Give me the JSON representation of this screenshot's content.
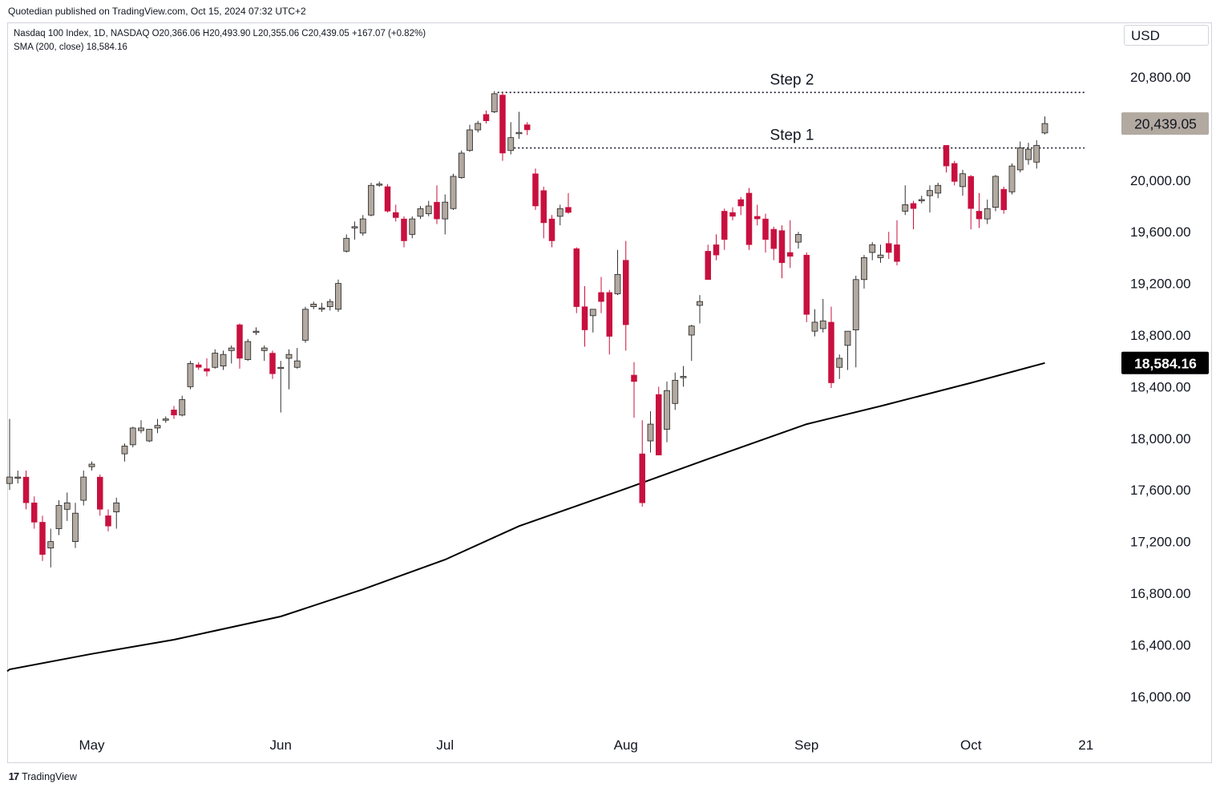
{
  "header": {
    "published": "Quotedian published on TradingView.com, Oct 15, 2024 07:32 UTC+2"
  },
  "legend": {
    "line1": "Nasdaq 100 Index, 1D, NASDAQ  O20,366.06  H20,493.90  L20,355.06  C20,439.05  +167.07 (+0.82%)",
    "line2": "SMA (200, close)  18,584.16"
  },
  "toolbar": {
    "currency": "USD"
  },
  "footer": {
    "brand": "TradingView",
    "logo": "tradingview-logo"
  },
  "colors": {
    "up": "#b2a9a0",
    "down": "#c8103f",
    "sma": "#000000",
    "last_price_badge": "#b2a9a0",
    "sma_badge": "#000000"
  },
  "chart_data": {
    "type": "candlestick",
    "title": "Nasdaq 100 Index, 1D, NASDAQ",
    "ylim": [
      15800,
      21100
    ],
    "y_ticks": [
      16000,
      16400,
      16800,
      17200,
      17600,
      18000,
      18400,
      18800,
      19200,
      19600,
      20000,
      20800
    ],
    "y_tick_labels": [
      "16,000.00",
      "16,400.00",
      "16,800.00",
      "17,200.00",
      "17,600.00",
      "18,000.00",
      "18,400.00",
      "18,800.00",
      "19,200.00",
      "19,600.00",
      "20,000.00",
      "20,800.00"
    ],
    "x_labels": [
      {
        "label": "May",
        "date": "2024-05-01"
      },
      {
        "label": "Jun",
        "date": "2024-06-03"
      },
      {
        "label": "Jul",
        "date": "2024-07-01"
      },
      {
        "label": "Aug",
        "date": "2024-08-01"
      },
      {
        "label": "Sep",
        "date": "2024-09-03"
      },
      {
        "label": "Oct",
        "date": "2024-10-01"
      },
      {
        "label": "21",
        "date": "2024-10-21"
      }
    ],
    "candles": [
      {
        "date": "2024-04-17",
        "o": 17650,
        "h": 18150,
        "l": 17600,
        "c": 17700
      },
      {
        "date": "2024-04-18",
        "o": 17700,
        "h": 17750,
        "l": 17650,
        "c": 17700
      },
      {
        "date": "2024-04-19",
        "o": 17700,
        "h": 17750,
        "l": 17450,
        "c": 17500
      },
      {
        "date": "2024-04-22",
        "o": 17500,
        "h": 17550,
        "l": 17300,
        "c": 17350
      },
      {
        "date": "2024-04-23",
        "o": 17350,
        "h": 17400,
        "l": 17050,
        "c": 17100
      },
      {
        "date": "2024-04-24",
        "o": 17150,
        "h": 17300,
        "l": 17000,
        "c": 17200
      },
      {
        "date": "2024-04-25",
        "o": 17300,
        "h": 17520,
        "l": 17250,
        "c": 17480
      },
      {
        "date": "2024-04-26",
        "o": 17450,
        "h": 17580,
        "l": 17360,
        "c": 17500
      },
      {
        "date": "2024-04-29",
        "o": 17200,
        "h": 17500,
        "l": 17150,
        "c": 17420
      },
      {
        "date": "2024-04-30",
        "o": 17520,
        "h": 17750,
        "l": 17480,
        "c": 17700
      },
      {
        "date": "2024-05-01",
        "o": 17780,
        "h": 17820,
        "l": 17750,
        "c": 17800
      },
      {
        "date": "2024-05-02",
        "o": 17700,
        "h": 17720,
        "l": 17400,
        "c": 17450
      },
      {
        "date": "2024-05-03",
        "o": 17400,
        "h": 17450,
        "l": 17280,
        "c": 17320
      },
      {
        "date": "2024-05-06",
        "o": 17430,
        "h": 17540,
        "l": 17300,
        "c": 17500
      },
      {
        "date": "2024-05-07",
        "o": 17880,
        "h": 17960,
        "l": 17820,
        "c": 17940
      },
      {
        "date": "2024-05-08",
        "o": 17950,
        "h": 18090,
        "l": 17930,
        "c": 18080
      },
      {
        "date": "2024-05-09",
        "o": 18060,
        "h": 18140,
        "l": 18040,
        "c": 18080
      },
      {
        "date": "2024-05-10",
        "o": 17980,
        "h": 18050,
        "l": 17970,
        "c": 18070
      },
      {
        "date": "2024-05-13",
        "o": 18080,
        "h": 18150,
        "l": 18040,
        "c": 18100
      },
      {
        "date": "2024-05-14",
        "o": 18140,
        "h": 18170,
        "l": 18120,
        "c": 18150
      },
      {
        "date": "2024-05-15",
        "o": 18220,
        "h": 18250,
        "l": 18150,
        "c": 18180
      },
      {
        "date": "2024-05-16",
        "o": 18180,
        "h": 18330,
        "l": 18170,
        "c": 18300
      },
      {
        "date": "2024-05-17",
        "o": 18400,
        "h": 18600,
        "l": 18380,
        "c": 18580
      },
      {
        "date": "2024-05-20",
        "o": 18570,
        "h": 18590,
        "l": 18530,
        "c": 18550
      },
      {
        "date": "2024-05-21",
        "o": 18540,
        "h": 18620,
        "l": 18480,
        "c": 18520
      },
      {
        "date": "2024-05-22",
        "o": 18550,
        "h": 18690,
        "l": 18540,
        "c": 18660
      },
      {
        "date": "2024-05-23",
        "o": 18560,
        "h": 18680,
        "l": 18530,
        "c": 18650
      },
      {
        "date": "2024-05-24",
        "o": 18680,
        "h": 18720,
        "l": 18580,
        "c": 18700
      },
      {
        "date": "2024-05-27",
        "o": 18880,
        "h": 18890,
        "l": 18540,
        "c": 18620
      },
      {
        "date": "2024-05-28",
        "o": 18610,
        "h": 18770,
        "l": 18600,
        "c": 18750
      },
      {
        "date": "2024-05-29",
        "o": 18820,
        "h": 18860,
        "l": 18800,
        "c": 18830
      },
      {
        "date": "2024-05-30",
        "o": 18680,
        "h": 18720,
        "l": 18600,
        "c": 18700
      },
      {
        "date": "2024-05-31",
        "o": 18660,
        "h": 18680,
        "l": 18460,
        "c": 18500
      },
      {
        "date": "2024-06-03",
        "o": 18550,
        "h": 18600,
        "l": 18200,
        "c": 18550
      },
      {
        "date": "2024-06-04",
        "o": 18620,
        "h": 18690,
        "l": 18380,
        "c": 18650
      },
      {
        "date": "2024-06-05",
        "o": 18550,
        "h": 18700,
        "l": 18540,
        "c": 18600
      },
      {
        "date": "2024-06-06",
        "o": 18760,
        "h": 19020,
        "l": 18740,
        "c": 19000
      },
      {
        "date": "2024-06-07",
        "o": 19020,
        "h": 19060,
        "l": 19000,
        "c": 19040
      },
      {
        "date": "2024-06-10",
        "o": 19000,
        "h": 19050,
        "l": 18980,
        "c": 19010
      },
      {
        "date": "2024-06-11",
        "o": 19020,
        "h": 19080,
        "l": 18990,
        "c": 19060
      },
      {
        "date": "2024-06-12",
        "o": 19000,
        "h": 19230,
        "l": 18980,
        "c": 19200
      },
      {
        "date": "2024-06-13",
        "o": 19450,
        "h": 19580,
        "l": 19440,
        "c": 19550
      },
      {
        "date": "2024-06-14",
        "o": 19630,
        "h": 19680,
        "l": 19540,
        "c": 19640
      },
      {
        "date": "2024-06-17",
        "o": 19590,
        "h": 19730,
        "l": 19570,
        "c": 19700
      },
      {
        "date": "2024-06-18",
        "o": 19730,
        "h": 19980,
        "l": 19720,
        "c": 19960
      },
      {
        "date": "2024-06-19",
        "o": 19970,
        "h": 19990,
        "l": 19950,
        "c": 19970
      },
      {
        "date": "2024-06-20",
        "o": 19950,
        "h": 19970,
        "l": 19750,
        "c": 19760
      },
      {
        "date": "2024-06-21",
        "o": 19750,
        "h": 19810,
        "l": 19680,
        "c": 19710
      },
      {
        "date": "2024-06-24",
        "o": 19700,
        "h": 19720,
        "l": 19480,
        "c": 19530
      },
      {
        "date": "2024-06-25",
        "o": 19580,
        "h": 19720,
        "l": 19550,
        "c": 19700
      },
      {
        "date": "2024-06-26",
        "o": 19720,
        "h": 19800,
        "l": 19700,
        "c": 19780
      },
      {
        "date": "2024-06-27",
        "o": 19740,
        "h": 19840,
        "l": 19720,
        "c": 19800
      },
      {
        "date": "2024-06-28",
        "o": 19830,
        "h": 19960,
        "l": 19660,
        "c": 19700
      },
      {
        "date": "2024-07-01",
        "o": 19700,
        "h": 19890,
        "l": 19580,
        "c": 19830
      },
      {
        "date": "2024-07-02",
        "o": 19780,
        "h": 20050,
        "l": 19770,
        "c": 20030
      },
      {
        "date": "2024-07-03",
        "o": 20020,
        "h": 20230,
        "l": 20010,
        "c": 20210
      },
      {
        "date": "2024-07-05",
        "o": 20230,
        "h": 20430,
        "l": 20220,
        "c": 20390
      },
      {
        "date": "2024-07-08",
        "o": 20390,
        "h": 20460,
        "l": 20370,
        "c": 20440
      },
      {
        "date": "2024-07-09",
        "o": 20510,
        "h": 20540,
        "l": 20440,
        "c": 20460
      },
      {
        "date": "2024-07-10",
        "o": 20530,
        "h": 20690,
        "l": 20520,
        "c": 20670
      },
      {
        "date": "2024-07-11",
        "o": 20660,
        "h": 20680,
        "l": 20150,
        "c": 20210
      },
      {
        "date": "2024-07-12",
        "o": 20230,
        "h": 20450,
        "l": 20200,
        "c": 20330
      },
      {
        "date": "2024-07-15",
        "o": 20360,
        "h": 20530,
        "l": 20320,
        "c": 20370
      },
      {
        "date": "2024-07-16",
        "o": 20430,
        "h": 20450,
        "l": 20350,
        "c": 20390
      },
      {
        "date": "2024-07-17",
        "o": 20050,
        "h": 20090,
        "l": 19770,
        "c": 19800
      },
      {
        "date": "2024-07-18",
        "o": 19920,
        "h": 19950,
        "l": 19550,
        "c": 19670
      },
      {
        "date": "2024-07-19",
        "o": 19700,
        "h": 19730,
        "l": 19480,
        "c": 19530
      },
      {
        "date": "2024-07-22",
        "o": 19720,
        "h": 19810,
        "l": 19650,
        "c": 19780
      },
      {
        "date": "2024-07-23",
        "o": 19790,
        "h": 19900,
        "l": 19740,
        "c": 19750
      },
      {
        "date": "2024-07-24",
        "o": 19470,
        "h": 19480,
        "l": 18970,
        "c": 19020
      },
      {
        "date": "2024-07-25",
        "o": 19020,
        "h": 19180,
        "l": 18710,
        "c": 18840
      },
      {
        "date": "2024-07-26",
        "o": 18950,
        "h": 19000,
        "l": 18820,
        "c": 19000
      },
      {
        "date": "2024-07-29",
        "o": 19130,
        "h": 19250,
        "l": 18970,
        "c": 19060
      },
      {
        "date": "2024-07-30",
        "o": 19130,
        "h": 19150,
        "l": 18650,
        "c": 18790
      },
      {
        "date": "2024-07-31",
        "o": 19120,
        "h": 19460,
        "l": 19110,
        "c": 19270
      },
      {
        "date": "2024-08-01",
        "o": 19380,
        "h": 19530,
        "l": 18680,
        "c": 18880
      },
      {
        "date": "2024-08-02",
        "o": 18490,
        "h": 18590,
        "l": 18160,
        "c": 18440
      },
      {
        "date": "2024-08-05",
        "o": 17880,
        "h": 18140,
        "l": 17470,
        "c": 17500
      },
      {
        "date": "2024-08-06",
        "o": 17980,
        "h": 18210,
        "l": 17890,
        "c": 18110
      },
      {
        "date": "2024-08-07",
        "o": 18340,
        "h": 18400,
        "l": 17870,
        "c": 17870
      },
      {
        "date": "2024-08-08",
        "o": 18070,
        "h": 18440,
        "l": 17970,
        "c": 18370
      },
      {
        "date": "2024-08-09",
        "o": 18270,
        "h": 18510,
        "l": 18220,
        "c": 18450
      },
      {
        "date": "2024-08-12",
        "o": 18470,
        "h": 18560,
        "l": 18400,
        "c": 18480
      },
      {
        "date": "2024-08-13",
        "o": 18800,
        "h": 18880,
        "l": 18600,
        "c": 18870
      },
      {
        "date": "2024-08-14",
        "o": 19030,
        "h": 19110,
        "l": 18890,
        "c": 19060
      },
      {
        "date": "2024-08-15",
        "o": 19450,
        "h": 19500,
        "l": 19230,
        "c": 19230
      },
      {
        "date": "2024-08-16",
        "o": 19500,
        "h": 19580,
        "l": 19380,
        "c": 19420
      },
      {
        "date": "2024-08-19",
        "o": 19760,
        "h": 19780,
        "l": 19460,
        "c": 19540
      },
      {
        "date": "2024-08-20",
        "o": 19750,
        "h": 19790,
        "l": 19690,
        "c": 19720
      },
      {
        "date": "2024-08-21",
        "o": 19850,
        "h": 19870,
        "l": 19730,
        "c": 19800
      },
      {
        "date": "2024-08-22",
        "o": 19900,
        "h": 19940,
        "l": 19460,
        "c": 19500
      },
      {
        "date": "2024-08-23",
        "o": 19720,
        "h": 19810,
        "l": 19650,
        "c": 19700
      },
      {
        "date": "2024-08-26",
        "o": 19700,
        "h": 19740,
        "l": 19440,
        "c": 19540
      },
      {
        "date": "2024-08-27",
        "o": 19620,
        "h": 19640,
        "l": 19380,
        "c": 19470
      },
      {
        "date": "2024-08-28",
        "o": 19610,
        "h": 19650,
        "l": 19240,
        "c": 19360
      },
      {
        "date": "2024-08-29",
        "o": 19440,
        "h": 19690,
        "l": 19320,
        "c": 19410
      },
      {
        "date": "2024-08-30",
        "o": 19520,
        "h": 19600,
        "l": 19470,
        "c": 19580
      },
      {
        "date": "2024-09-03",
        "o": 19420,
        "h": 19440,
        "l": 18900,
        "c": 18960
      },
      {
        "date": "2024-09-04",
        "o": 18830,
        "h": 19000,
        "l": 18790,
        "c": 18900
      },
      {
        "date": "2024-09-05",
        "o": 18850,
        "h": 19080,
        "l": 18820,
        "c": 18910
      },
      {
        "date": "2024-09-06",
        "o": 18900,
        "h": 19020,
        "l": 18390,
        "c": 18430
      },
      {
        "date": "2024-09-09",
        "o": 18550,
        "h": 18650,
        "l": 18460,
        "c": 18620
      },
      {
        "date": "2024-09-10",
        "o": 18720,
        "h": 18810,
        "l": 18530,
        "c": 18830
      },
      {
        "date": "2024-09-11",
        "o": 18840,
        "h": 19260,
        "l": 18550,
        "c": 19230
      },
      {
        "date": "2024-09-12",
        "o": 19230,
        "h": 19420,
        "l": 19160,
        "c": 19400
      },
      {
        "date": "2024-09-13",
        "o": 19440,
        "h": 19520,
        "l": 19380,
        "c": 19500
      },
      {
        "date": "2024-09-16",
        "o": 19400,
        "h": 19500,
        "l": 19360,
        "c": 19420
      },
      {
        "date": "2024-09-17",
        "o": 19510,
        "h": 19600,
        "l": 19390,
        "c": 19440
      },
      {
        "date": "2024-09-18",
        "o": 19500,
        "h": 19690,
        "l": 19340,
        "c": 19370
      },
      {
        "date": "2024-09-19",
        "o": 19760,
        "h": 19960,
        "l": 19730,
        "c": 19810
      },
      {
        "date": "2024-09-20",
        "o": 19820,
        "h": 19840,
        "l": 19620,
        "c": 19780
      },
      {
        "date": "2024-09-23",
        "o": 19840,
        "h": 19880,
        "l": 19820,
        "c": 19850
      },
      {
        "date": "2024-09-24",
        "o": 19880,
        "h": 19960,
        "l": 19750,
        "c": 19920
      },
      {
        "date": "2024-09-25",
        "o": 19900,
        "h": 19980,
        "l": 19860,
        "c": 19960
      },
      {
        "date": "2024-09-26",
        "o": 20270,
        "h": 20270,
        "l": 20060,
        "c": 20110
      },
      {
        "date": "2024-09-27",
        "o": 20130,
        "h": 20150,
        "l": 19960,
        "c": 19990
      },
      {
        "date": "2024-09-30",
        "o": 19950,
        "h": 20080,
        "l": 19880,
        "c": 20050
      },
      {
        "date": "2024-10-01",
        "o": 20030,
        "h": 20040,
        "l": 19620,
        "c": 19780
      },
      {
        "date": "2024-10-02",
        "o": 19760,
        "h": 19900,
        "l": 19630,
        "c": 19700
      },
      {
        "date": "2024-10-03",
        "o": 19700,
        "h": 19850,
        "l": 19660,
        "c": 19780
      },
      {
        "date": "2024-10-04",
        "o": 19790,
        "h": 20040,
        "l": 19760,
        "c": 20030
      },
      {
        "date": "2024-10-07",
        "o": 19930,
        "h": 19950,
        "l": 19740,
        "c": 19770
      },
      {
        "date": "2024-10-08",
        "o": 19910,
        "h": 20130,
        "l": 19890,
        "c": 20110
      },
      {
        "date": "2024-10-09",
        "o": 20080,
        "h": 20300,
        "l": 20060,
        "c": 20250
      },
      {
        "date": "2024-10-10",
        "o": 20160,
        "h": 20290,
        "l": 20120,
        "c": 20240
      },
      {
        "date": "2024-10-11",
        "o": 20140,
        "h": 20310,
        "l": 20090,
        "c": 20270
      },
      {
        "date": "2024-10-14",
        "o": 20366.06,
        "h": 20493.9,
        "l": 20355.06,
        "c": 20439.05
      }
    ],
    "series": [
      {
        "name": "SMA (200, close)",
        "x": [
          "2024-04-17",
          "2024-05-01",
          "2024-05-15",
          "2024-06-03",
          "2024-06-17",
          "2024-07-01",
          "2024-07-15",
          "2024-08-01",
          "2024-08-15",
          "2024-09-03",
          "2024-09-16",
          "2024-10-01",
          "2024-10-14"
        ],
        "values": [
          16210,
          16330,
          16440,
          16620,
          16830,
          17060,
          17320,
          17610,
          17840,
          18110,
          18250,
          18430,
          18584.16
        ]
      }
    ],
    "annotations": [
      {
        "label": "Step 2",
        "value": 20680,
        "from": "2024-07-10"
      },
      {
        "label": "Step 1",
        "value": 20250,
        "from": "2024-07-12"
      }
    ],
    "price_badges": [
      {
        "label": "20,439.05",
        "value": 20439.05,
        "style": "last_price"
      },
      {
        "label": "18,584.16",
        "value": 18584.16,
        "style": "sma"
      }
    ]
  }
}
